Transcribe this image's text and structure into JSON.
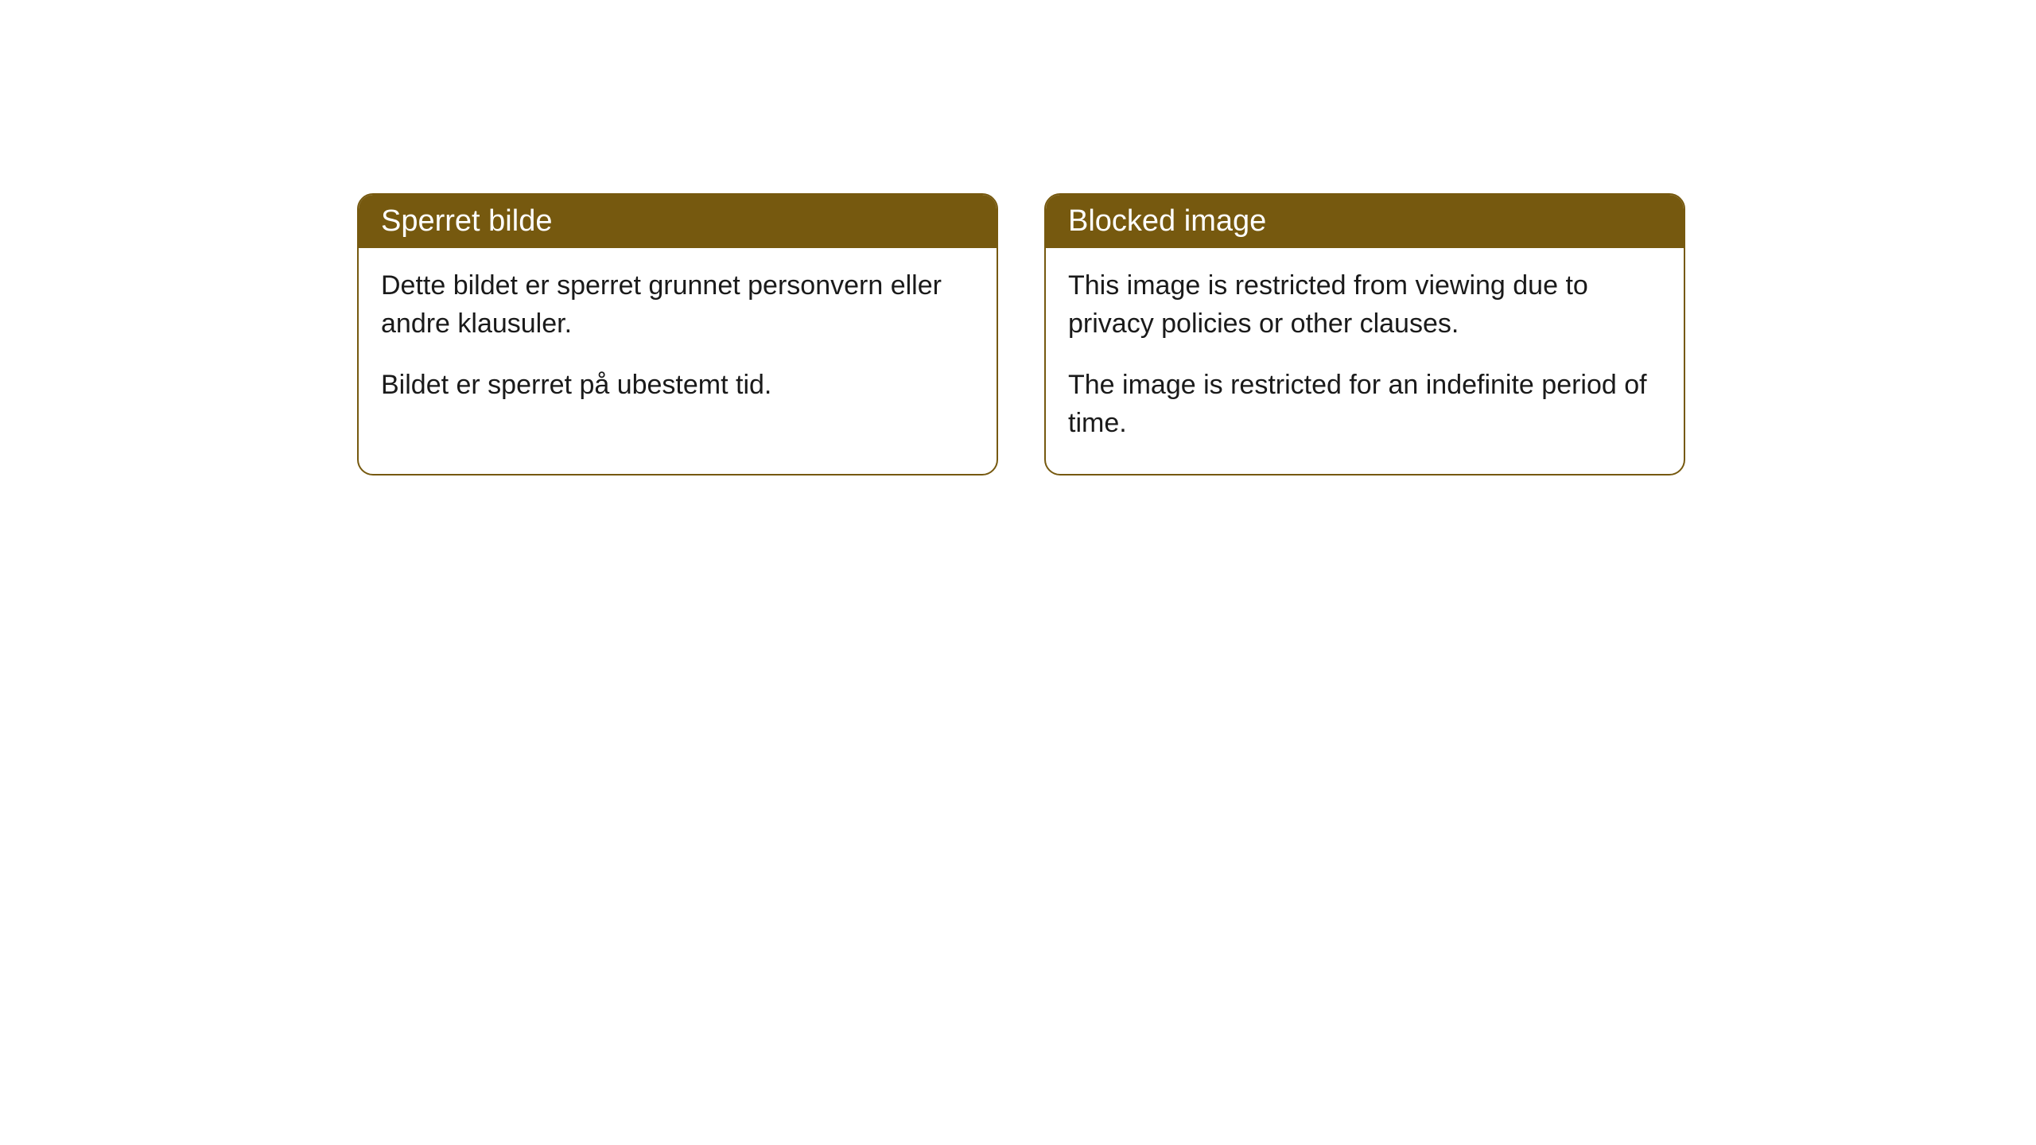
{
  "cards": [
    {
      "title": "Sperret bilde",
      "paragraph1": "Dette bildet er sperret grunnet personvern eller andre klausuler.",
      "paragraph2": "Bildet er sperret på ubestemt tid."
    },
    {
      "title": "Blocked image",
      "paragraph1": "This image is restricted from viewing due to privacy policies or other clauses.",
      "paragraph2": "The image is restricted for an indefinite period of time."
    }
  ],
  "style": {
    "header_bg_color": "#76590f",
    "header_text_color": "#ffffff",
    "border_color": "#76590f",
    "border_radius": 20,
    "body_text_color": "#1a1a1a",
    "background_color": "#ffffff",
    "header_fontsize": 38,
    "body_fontsize": 34
  }
}
